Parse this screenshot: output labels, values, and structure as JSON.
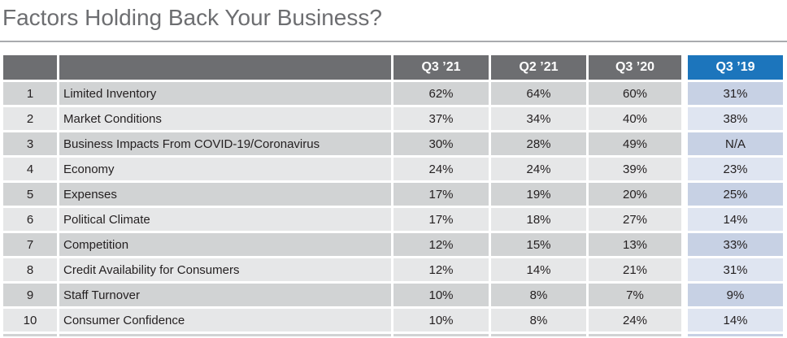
{
  "title": "Factors Holding Back Your Business?",
  "chart_data": {
    "type": "table",
    "title": "Factors Holding Back Your Business?",
    "columns": [
      "Q3 ’21",
      "Q2 ’21",
      "Q3 ’20",
      "Q3 ’19"
    ],
    "highlighted_column": "Q3 ’19",
    "rows": [
      {
        "rank": "1",
        "factor": "Limited Inventory",
        "values": [
          "62%",
          "64%",
          "60%",
          "31%"
        ]
      },
      {
        "rank": "2",
        "factor": "Market Conditions",
        "values": [
          "37%",
          "34%",
          "40%",
          "38%"
        ]
      },
      {
        "rank": "3",
        "factor": "Business Impacts From COVID-19/Coronavirus",
        "values": [
          "30%",
          "28%",
          "49%",
          "N/A"
        ]
      },
      {
        "rank": "4",
        "factor": "Economy",
        "values": [
          "24%",
          "24%",
          "39%",
          "23%"
        ]
      },
      {
        "rank": "5",
        "factor": "Expenses",
        "values": [
          "17%",
          "19%",
          "20%",
          "25%"
        ]
      },
      {
        "rank": "6",
        "factor": "Political Climate",
        "values": [
          "17%",
          "18%",
          "27%",
          "14%"
        ]
      },
      {
        "rank": "7",
        "factor": "Competition",
        "values": [
          "12%",
          "15%",
          "13%",
          "33%"
        ]
      },
      {
        "rank": "8",
        "factor": "Credit Availability for Consumers",
        "values": [
          "12%",
          "14%",
          "21%",
          "31%"
        ]
      },
      {
        "rank": "9",
        "factor": "Staff Turnover",
        "values": [
          "10%",
          "8%",
          "7%",
          "9%"
        ]
      },
      {
        "rank": "10",
        "factor": "Consumer Confidence",
        "values": [
          "10%",
          "8%",
          "24%",
          "14%"
        ]
      }
    ]
  },
  "colors": {
    "header_gray": "#6d6e71",
    "highlight_blue": "#1c75bc",
    "row_gray_dark": "#d1d3d4",
    "row_gray_light": "#e6e7e8",
    "row_blue_dark": "#c7d1e4",
    "row_blue_light": "#dfe5f1",
    "title_text": "#6d6e71",
    "cell_text": "#231f20"
  }
}
